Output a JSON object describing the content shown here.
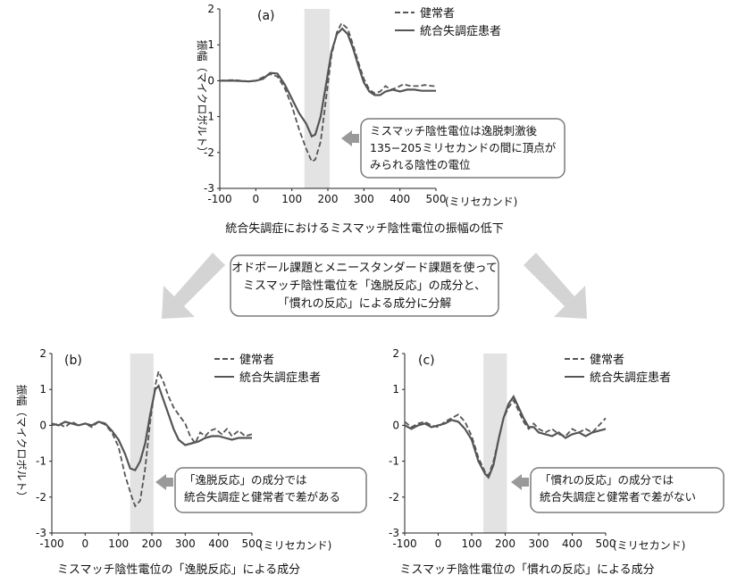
{
  "colors": {
    "shade": "#e3e3e3",
    "line": "#555555",
    "arrow": "#c8c8c8",
    "box_border": "#7a7a7a"
  },
  "middle_box": {
    "lines": [
      "オドボール課題とメニースタンダード課題を使って",
      "ミスマッチ陰性電位を「逸脱反応」の成分と、",
      "「慣れの反応」による成分に分解"
    ]
  },
  "chart_data": [
    {
      "type": "line",
      "panel_label": "(a)",
      "title": "統合失調症におけるミスマッチ陰性電位の振幅の低下",
      "ylabel": "振幅（マイクロボルト）",
      "x_unit": "(ミリセカンド)",
      "xlim": [
        -100,
        500
      ],
      "ylim": [
        -3,
        2
      ],
      "xticks": [
        "-100",
        "0",
        "100",
        "200",
        "300",
        "400",
        "500"
      ],
      "yticks": [
        "-3",
        "-2",
        "-1",
        "0",
        "1",
        "2"
      ],
      "shaded_region": [
        135,
        205
      ],
      "legend": [
        "健常者",
        "統合失調症患者"
      ],
      "callout": [
        "ミスマッチ陰性電位は逸脱刺激後",
        "135−205ミリセカンドの間に頂点が",
        "みられる陰性の電位"
      ],
      "series": [
        {
          "name": "健常者",
          "style": "dashed",
          "points": [
            [
              -100,
              0
            ],
            [
              -60,
              0.02
            ],
            [
              -20,
              -0.02
            ],
            [
              0,
              0
            ],
            [
              20,
              0.1
            ],
            [
              40,
              0.18
            ],
            [
              60,
              0.12
            ],
            [
              80,
              -0.2
            ],
            [
              100,
              -0.7
            ],
            [
              120,
              -1.35
            ],
            [
              140,
              -1.9
            ],
            [
              155,
              -2.25
            ],
            [
              165,
              -2.2
            ],
            [
              180,
              -1.7
            ],
            [
              195,
              -0.5
            ],
            [
              210,
              0.7
            ],
            [
              225,
              1.35
            ],
            [
              238,
              1.6
            ],
            [
              255,
              1.45
            ],
            [
              270,
              1.0
            ],
            [
              285,
              0.5
            ],
            [
              300,
              0.05
            ],
            [
              315,
              -0.25
            ],
            [
              330,
              -0.35
            ],
            [
              345,
              -0.3
            ],
            [
              360,
              -0.15
            ],
            [
              375,
              -0.25
            ],
            [
              390,
              -0.2
            ],
            [
              410,
              -0.1
            ],
            [
              430,
              -0.15
            ],
            [
              450,
              -0.15
            ],
            [
              470,
              -0.12
            ],
            [
              490,
              -0.15
            ],
            [
              500,
              -0.15
            ]
          ]
        },
        {
          "name": "統合失調症患者",
          "style": "solid",
          "points": [
            [
              -100,
              0
            ],
            [
              -60,
              0
            ],
            [
              -20,
              -0.02
            ],
            [
              0,
              0
            ],
            [
              20,
              0.05
            ],
            [
              40,
              0.22
            ],
            [
              60,
              0.2
            ],
            [
              80,
              -0.1
            ],
            [
              100,
              -0.5
            ],
            [
              120,
              -0.9
            ],
            [
              140,
              -1.2
            ],
            [
              155,
              -1.55
            ],
            [
              165,
              -1.5
            ],
            [
              180,
              -1.0
            ],
            [
              195,
              -0.1
            ],
            [
              210,
              0.8
            ],
            [
              225,
              1.3
            ],
            [
              240,
              1.45
            ],
            [
              255,
              1.3
            ],
            [
              270,
              0.9
            ],
            [
              285,
              0.4
            ],
            [
              300,
              -0.05
            ],
            [
              315,
              -0.3
            ],
            [
              330,
              -0.4
            ],
            [
              345,
              -0.4
            ],
            [
              360,
              -0.3
            ],
            [
              380,
              -0.25
            ],
            [
              400,
              -0.3
            ],
            [
              420,
              -0.25
            ],
            [
              440,
              -0.25
            ],
            [
              460,
              -0.28
            ],
            [
              480,
              -0.28
            ],
            [
              500,
              -0.28
            ]
          ]
        }
      ]
    },
    {
      "type": "line",
      "panel_label": "(b)",
      "title": "ミスマッチ陰性電位の「逸脱反応」による成分",
      "ylabel": "振幅（マイクロボルト）",
      "x_unit": "(ミリセカンド)",
      "xlim": [
        -100,
        500
      ],
      "ylim": [
        -3,
        2
      ],
      "xticks": [
        "-100",
        "0",
        "100",
        "200",
        "300",
        "400",
        "500"
      ],
      "yticks": [
        "-3",
        "-2",
        "-1",
        "0",
        "1",
        "2"
      ],
      "shaded_region": [
        135,
        205
      ],
      "legend": [
        "健常者",
        "統合失調症患者"
      ],
      "callout": [
        "「逸脱反応」の成分では",
        "統合失調症と健常者で差がある"
      ],
      "series": [
        {
          "name": "健常者",
          "style": "dashed",
          "points": [
            [
              -100,
              0
            ],
            [
              -80,
              0.05
            ],
            [
              -60,
              -0.05
            ],
            [
              -40,
              0.1
            ],
            [
              -20,
              0
            ],
            [
              0,
              0.05
            ],
            [
              20,
              -0.05
            ],
            [
              40,
              0.1
            ],
            [
              60,
              0.02
            ],
            [
              80,
              -0.2
            ],
            [
              100,
              -0.6
            ],
            [
              120,
              -1.4
            ],
            [
              140,
              -2.0
            ],
            [
              150,
              -2.25
            ],
            [
              165,
              -2.1
            ],
            [
              180,
              -1.2
            ],
            [
              195,
              0.1
            ],
            [
              210,
              1.1
            ],
            [
              220,
              1.5
            ],
            [
              235,
              1.2
            ],
            [
              250,
              0.8
            ],
            [
              265,
              0.5
            ],
            [
              280,
              0.3
            ],
            [
              300,
              0.05
            ],
            [
              315,
              -0.3
            ],
            [
              330,
              -0.5
            ],
            [
              345,
              -0.2
            ],
            [
              360,
              -0.3
            ],
            [
              375,
              -0.15
            ],
            [
              390,
              -0.1
            ],
            [
              410,
              -0.25
            ],
            [
              425,
              -0.1
            ],
            [
              440,
              -0.3
            ],
            [
              460,
              -0.15
            ],
            [
              480,
              -0.3
            ],
            [
              500,
              -0.25
            ]
          ]
        },
        {
          "name": "統合失調症患者",
          "style": "solid",
          "points": [
            [
              -100,
              0.05
            ],
            [
              -80,
              0
            ],
            [
              -60,
              0.1
            ],
            [
              -40,
              0.05
            ],
            [
              -20,
              0
            ],
            [
              0,
              0.05
            ],
            [
              20,
              0
            ],
            [
              40,
              0.1
            ],
            [
              60,
              0.05
            ],
            [
              80,
              -0.15
            ],
            [
              100,
              -0.4
            ],
            [
              120,
              -0.8
            ],
            [
              135,
              -1.2
            ],
            [
              150,
              -1.25
            ],
            [
              165,
              -1.0
            ],
            [
              180,
              -0.5
            ],
            [
              195,
              0.3
            ],
            [
              210,
              1.0
            ],
            [
              220,
              1.1
            ],
            [
              235,
              0.7
            ],
            [
              250,
              0.3
            ],
            [
              265,
              -0.1
            ],
            [
              280,
              -0.4
            ],
            [
              300,
              -0.55
            ],
            [
              320,
              -0.5
            ],
            [
              340,
              -0.45
            ],
            [
              360,
              -0.35
            ],
            [
              380,
              -0.3
            ],
            [
              400,
              -0.3
            ],
            [
              420,
              -0.35
            ],
            [
              440,
              -0.4
            ],
            [
              460,
              -0.35
            ],
            [
              480,
              -0.35
            ],
            [
              500,
              -0.35
            ]
          ]
        }
      ]
    },
    {
      "type": "line",
      "panel_label": "(c)",
      "title": "ミスマッチ陰性電位の「慣れの反応」による成分",
      "ylabel": "",
      "x_unit": "(ミリセカンド)",
      "xlim": [
        -100,
        500
      ],
      "ylim": [
        -3,
        2
      ],
      "xticks": [
        "-100",
        "0",
        "100",
        "200",
        "300",
        "400",
        "500"
      ],
      "yticks": [
        "-3",
        "-2",
        "-1",
        "0",
        "1",
        "2"
      ],
      "shaded_region": [
        135,
        205
      ],
      "legend": [
        "健常者",
        "統合失調症患者"
      ],
      "callout": [
        "「慣れの反応」の成分では",
        "統合失調症と健常者で差がない"
      ],
      "series": [
        {
          "name": "健常者",
          "style": "dashed",
          "points": [
            [
              -100,
              0.1
            ],
            [
              -80,
              -0.05
            ],
            [
              -60,
              0.05
            ],
            [
              -40,
              0.1
            ],
            [
              -20,
              0.0
            ],
            [
              0,
              -0.05
            ],
            [
              20,
              0.1
            ],
            [
              40,
              0.2
            ],
            [
              60,
              0.3
            ],
            [
              80,
              0.1
            ],
            [
              100,
              -0.3
            ],
            [
              120,
              -0.9
            ],
            [
              140,
              -1.3
            ],
            [
              150,
              -1.4
            ],
            [
              165,
              -1.0
            ],
            [
              180,
              -0.4
            ],
            [
              195,
              0.2
            ],
            [
              210,
              0.5
            ],
            [
              225,
              0.7
            ],
            [
              240,
              0.4
            ],
            [
              255,
              0.1
            ],
            [
              270,
              -0.1
            ],
            [
              285,
              0.05
            ],
            [
              300,
              -0.1
            ],
            [
              320,
              -0.2
            ],
            [
              340,
              -0.1
            ],
            [
              360,
              -0.25
            ],
            [
              380,
              -0.3
            ],
            [
              400,
              -0.1
            ],
            [
              420,
              -0.2
            ],
            [
              440,
              -0.1
            ],
            [
              460,
              -0.2
            ],
            [
              480,
              0.0
            ],
            [
              500,
              0.2
            ]
          ]
        },
        {
          "name": "統合失調症患者",
          "style": "solid",
          "points": [
            [
              -100,
              0
            ],
            [
              -80,
              -0.1
            ],
            [
              -60,
              0.0
            ],
            [
              -40,
              0.05
            ],
            [
              -20,
              -0.05
            ],
            [
              0,
              0.0
            ],
            [
              20,
              0.05
            ],
            [
              40,
              0.15
            ],
            [
              60,
              0.1
            ],
            [
              80,
              -0.1
            ],
            [
              100,
              -0.4
            ],
            [
              120,
              -1.0
            ],
            [
              140,
              -1.35
            ],
            [
              150,
              -1.45
            ],
            [
              165,
              -1.1
            ],
            [
              180,
              -0.4
            ],
            [
              195,
              0.2
            ],
            [
              210,
              0.6
            ],
            [
              225,
              0.8
            ],
            [
              240,
              0.5
            ],
            [
              255,
              0.2
            ],
            [
              270,
              -0.05
            ],
            [
              285,
              -0.05
            ],
            [
              300,
              -0.2
            ],
            [
              320,
              -0.25
            ],
            [
              340,
              -0.3
            ],
            [
              360,
              -0.2
            ],
            [
              380,
              -0.35
            ],
            [
              400,
              -0.25
            ],
            [
              420,
              -0.2
            ],
            [
              440,
              -0.3
            ],
            [
              460,
              -0.2
            ],
            [
              480,
              -0.15
            ],
            [
              500,
              -0.1
            ]
          ]
        }
      ]
    }
  ]
}
